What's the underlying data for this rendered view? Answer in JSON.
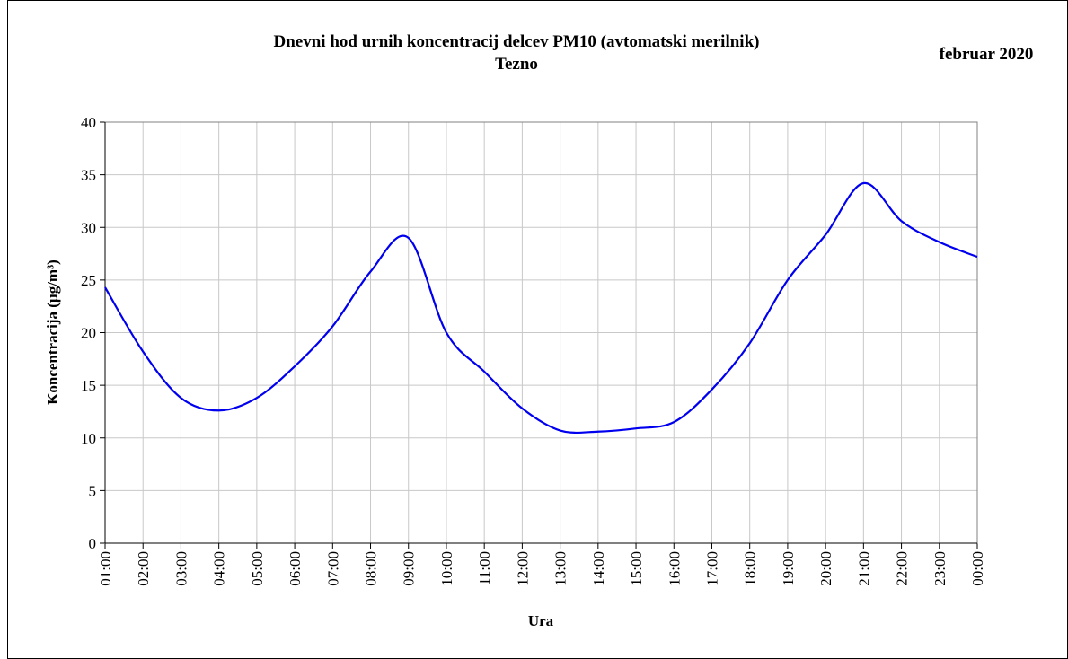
{
  "chart_data": {
    "type": "line",
    "title": [
      "Dnevni hod urnih koncentracij  delcev PM10 (avtomatski merilnik)",
      "Tezno"
    ],
    "subtitle": "februar 2020",
    "x_label": "Ura",
    "y_label": "Koncentracija  (µg/m³)",
    "categories": [
      "01:00",
      "02:00",
      "03:00",
      "04:00",
      "05:00",
      "06:00",
      "07:00",
      "08:00",
      "09:00",
      "10:00",
      "11:00",
      "12:00",
      "13:00",
      "14:00",
      "15:00",
      "16:00",
      "17:00",
      "18:00",
      "19:00",
      "20:00",
      "21:00",
      "22:00",
      "23:00",
      "00:00"
    ],
    "series": [
      {
        "name": "PM10",
        "color": "#0000ee",
        "values": [
          24.3,
          18.2,
          13.8,
          12.6,
          13.8,
          16.8,
          20.6,
          25.8,
          29.0,
          20.0,
          16.3,
          12.8,
          10.7,
          10.6,
          10.9,
          11.5,
          14.6,
          19.0,
          25.0,
          29.3,
          34.2,
          30.6,
          28.6,
          27.2
        ]
      }
    ],
    "ylim": [
      0,
      40
    ],
    "yticks": [
      0,
      5,
      10,
      15,
      20,
      25,
      30,
      35,
      40
    ],
    "grid": true
  }
}
